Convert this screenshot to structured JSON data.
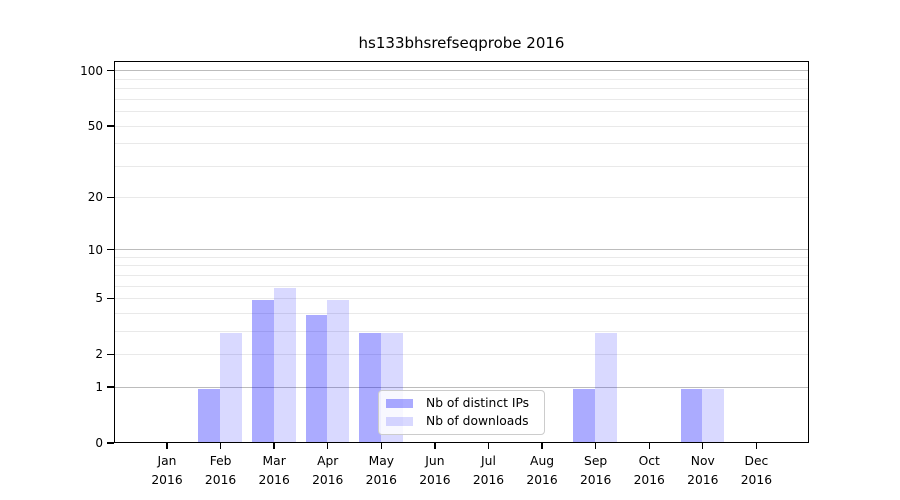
{
  "chart_data": {
    "type": "bar",
    "title": "hs133bhsrefseqprobe 2016",
    "categories": [
      "Jan",
      "Feb",
      "Mar",
      "Apr",
      "May",
      "Jun",
      "Jul",
      "Aug",
      "Sep",
      "Oct",
      "Nov",
      "Dec"
    ],
    "year_label": "2016",
    "series": [
      {
        "name": "Nb of distinct IPs",
        "color": "#0000FF54",
        "values": [
          0,
          1,
          5,
          4,
          3,
          0,
          0,
          0,
          1,
          0,
          1,
          0
        ]
      },
      {
        "name": "Nb of downloads",
        "color": "#0000FF26",
        "values": [
          0,
          3,
          6,
          5,
          3,
          0,
          0,
          0,
          3,
          0,
          1,
          0
        ]
      }
    ],
    "y_scale": "log10(x+1)",
    "ylim": [
      0,
      112
    ],
    "y_ticks": [
      0,
      1,
      2,
      5,
      10,
      20,
      50,
      100
    ],
    "y_minor_gridlines": [
      3,
      4,
      6,
      7,
      8,
      9,
      30,
      40,
      60,
      70,
      80,
      90
    ],
    "y_decade_gridlines": [
      1,
      10,
      100
    ],
    "grid": true,
    "legend_position": "lower center",
    "xlabel": "",
    "ylabel": "",
    "colors": {
      "bar_distinct_ips": "#0000FF54",
      "bar_downloads": "#0000FF26",
      "grid_decade": "#bcbcbc",
      "grid_minor": "#e9e9e9",
      "axis": "#000000",
      "legend_border": "#cccccc",
      "legend_bg": "#FFFFFFCC",
      "text": "#000000"
    }
  }
}
